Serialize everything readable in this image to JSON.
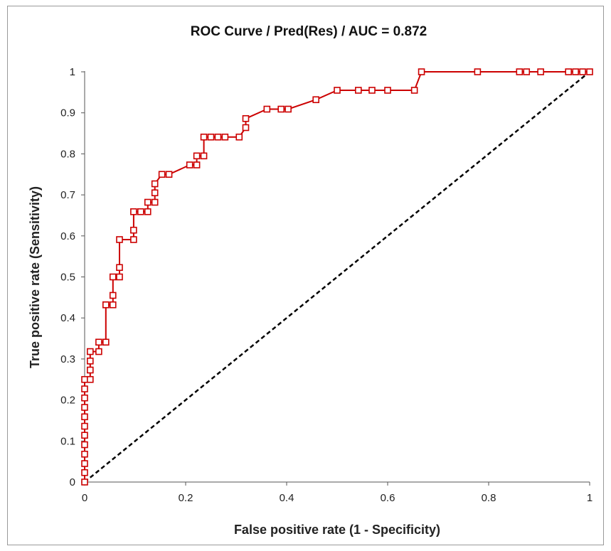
{
  "chart_data": {
    "type": "line",
    "title": "ROC Curve / Pred(Res) / AUC = 0.872",
    "xlabel": "False positive rate (1 - Specificity)",
    "ylabel": "True positive rate (Sensitivity)",
    "xlim": [
      0,
      1
    ],
    "ylim": [
      0,
      1
    ],
    "xticks": [
      "0",
      "0.2",
      "0.4",
      "0.6",
      "0.8",
      "1"
    ],
    "yticks": [
      "0",
      "0.1",
      "0.2",
      "0.3",
      "0.4",
      "0.5",
      "0.6",
      "0.7",
      "0.8",
      "0.9",
      "1"
    ],
    "grid": false,
    "legend": "none",
    "series": [
      {
        "color": "#cc0000",
        "marker": "square",
        "x": [
          0,
          0,
          0,
          0,
          0,
          0,
          0,
          0,
          0,
          0,
          0,
          0,
          0.011,
          0.011,
          0.011,
          0.011,
          0.028,
          0.028,
          0.042,
          0.042,
          0.042,
          0.056,
          0.056,
          0.056,
          0.069,
          0.069,
          0.069,
          0.097,
          0.097,
          0.097,
          0.111,
          0.125,
          0.125,
          0.139,
          0.139,
          0.139,
          0.153,
          0.167,
          0.208,
          0.222,
          0.222,
          0.236,
          0.236,
          0.25,
          0.264,
          0.278,
          0.306,
          0.319,
          0.319,
          0.361,
          0.389,
          0.403,
          0.458,
          0.5,
          0.542,
          0.569,
          0.6,
          0.653,
          0.667,
          0.778,
          0.861,
          0.875,
          0.903,
          0.958,
          0.972,
          0.986,
          1.0
        ],
        "y": [
          0,
          0.023,
          0.045,
          0.068,
          0.091,
          0.114,
          0.136,
          0.159,
          0.182,
          0.205,
          0.227,
          0.25,
          0.25,
          0.273,
          0.295,
          0.318,
          0.318,
          0.341,
          0.341,
          0.432,
          0.432,
          0.432,
          0.455,
          0.5,
          0.5,
          0.523,
          0.591,
          0.591,
          0.614,
          0.659,
          0.659,
          0.659,
          0.682,
          0.682,
          0.705,
          0.727,
          0.75,
          0.75,
          0.773,
          0.773,
          0.795,
          0.795,
          0.841,
          0.841,
          0.841,
          0.841,
          0.841,
          0.864,
          0.886,
          0.909,
          0.909,
          0.909,
          0.932,
          0.955,
          0.955,
          0.955,
          0.955,
          0.955,
          1.0,
          1.0,
          1.0,
          1.0,
          1.0,
          1.0,
          1.0,
          1.0,
          1.0
        ]
      },
      {
        "color": "#000000",
        "line": "dashed",
        "x": [
          0,
          1
        ],
        "y": [
          0,
          1
        ]
      }
    ]
  }
}
